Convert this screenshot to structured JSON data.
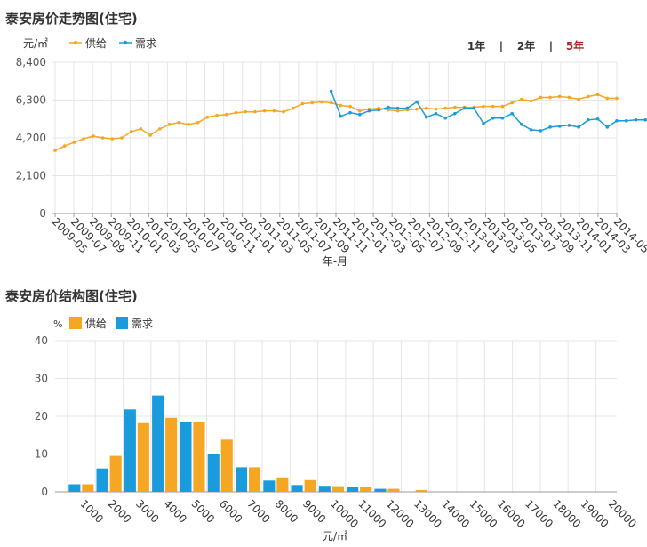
{
  "colors": {
    "supply": "#F5A623",
    "demand": "#1A9BDC",
    "active_range": "#B22222",
    "grid": "#e6e6e6",
    "axis_text": "#555555"
  },
  "trend": {
    "title": "泰安房价走势图(住宅)",
    "unit_label": "元/㎡",
    "xlabel": "年-月",
    "legend": [
      {
        "name": "供给",
        "color": "#F5A623"
      },
      {
        "name": "需求",
        "color": "#1A9BDC"
      }
    ],
    "range_buttons": [
      {
        "label": "1年",
        "active": false
      },
      {
        "label": "2年",
        "active": false
      },
      {
        "label": "5年",
        "active": true
      }
    ],
    "separator": "|"
  },
  "structure": {
    "title": "泰安房价结构图(住宅)",
    "unit_label": "%",
    "xlabel": "元/㎡",
    "legend": [
      {
        "name": "供给",
        "color": "#F5A623"
      },
      {
        "name": "需求",
        "color": "#1A9BDC"
      }
    ]
  },
  "chart_data": [
    {
      "type": "line",
      "title": "泰安房价走势图(住宅)",
      "xlabel": "年-月",
      "ylabel": "元/㎡",
      "ylim": [
        0,
        8400
      ],
      "yticks": [
        0,
        2100,
        4200,
        6300,
        8400
      ],
      "ytick_labels": [
        "0",
        "2,100",
        "4,200",
        "6,300",
        "8,400"
      ],
      "xtick_labels": [
        "2009-05",
        "2009-07",
        "2009-09",
        "2009-11",
        "2010-01",
        "2010-03",
        "2010-05",
        "2010-07",
        "2010-09",
        "2010-11",
        "2011-01",
        "2011-03",
        "2011-05",
        "2011-07",
        "2011-09",
        "2011-11",
        "2012-01",
        "2012-03",
        "2012-05",
        "2012-07",
        "2012-09",
        "2012-11",
        "2013-01",
        "2013-03",
        "2013-05",
        "2013-07",
        "2013-09",
        "2013-11",
        "2014-01",
        "2014-03",
        "2014-05"
      ],
      "grid": true,
      "legend_position": "top-left",
      "series": [
        {
          "name": "供给",
          "color": "#F5A623",
          "values": [
            3500,
            3750,
            3950,
            4150,
            4300,
            4200,
            4150,
            4200,
            4550,
            4700,
            4350,
            4700,
            4950,
            5050,
            4950,
            5050,
            5350,
            5450,
            5500,
            5600,
            5650,
            5650,
            5700,
            5700,
            5650,
            5850,
            6100,
            6150,
            6200,
            6150,
            6000,
            5950,
            5700,
            5800,
            5850,
            5750,
            5700,
            5750,
            5800,
            5850,
            5800,
            5850,
            5900,
            5900,
            5900,
            5950,
            5950,
            5950,
            6150,
            6350,
            6250,
            6450,
            6450,
            6500,
            6450,
            6350,
            6500,
            6600,
            6400,
            6400
          ]
        },
        {
          "name": "需求",
          "color": "#1A9BDC",
          "start_index": 29,
          "values": [
            6800,
            5400,
            5600,
            5500,
            5700,
            5750,
            5900,
            5850,
            5850,
            6200,
            5350,
            5550,
            5300,
            5550,
            5850,
            5850,
            5000,
            5300,
            5300,
            5550,
            4950,
            4650,
            4600,
            4800,
            4850,
            4900,
            4800,
            5200,
            5250,
            4800,
            5150,
            5150,
            5200,
            5200,
            5150,
            5300,
            5250,
            5600,
            5600
          ]
        }
      ]
    },
    {
      "type": "bar",
      "title": "泰安房价结构图(住宅)",
      "xlabel": "元/㎡",
      "ylabel": "%",
      "ylim": [
        0,
        40
      ],
      "yticks": [
        0,
        10,
        20,
        30,
        40
      ],
      "categories": [
        "1000",
        "2000",
        "3000",
        "4000",
        "5000",
        "6000",
        "7000",
        "8000",
        "9000",
        "10000",
        "11000",
        "12000",
        "13000",
        "14000",
        "15000",
        "16000",
        "17000",
        "18000",
        "19000",
        "20000"
      ],
      "grid": true,
      "legend_position": "top-left",
      "series": [
        {
          "name": "供给",
          "color": "#F5A623",
          "values": [
            0,
            2,
            9.5,
            18.2,
            19.6,
            18.5,
            13.8,
            6.5,
            3.8,
            3.1,
            1.5,
            1.2,
            0.8,
            0.5,
            0,
            0,
            0,
            0,
            0,
            0
          ]
        },
        {
          "name": "需求",
          "color": "#1A9BDC",
          "values": [
            2,
            6.2,
            21.8,
            25.5,
            18.5,
            10,
            6.5,
            3,
            1.8,
            1.6,
            1.2,
            0.8,
            0,
            0,
            0,
            0,
            0,
            0,
            0,
            0
          ]
        }
      ]
    }
  ]
}
